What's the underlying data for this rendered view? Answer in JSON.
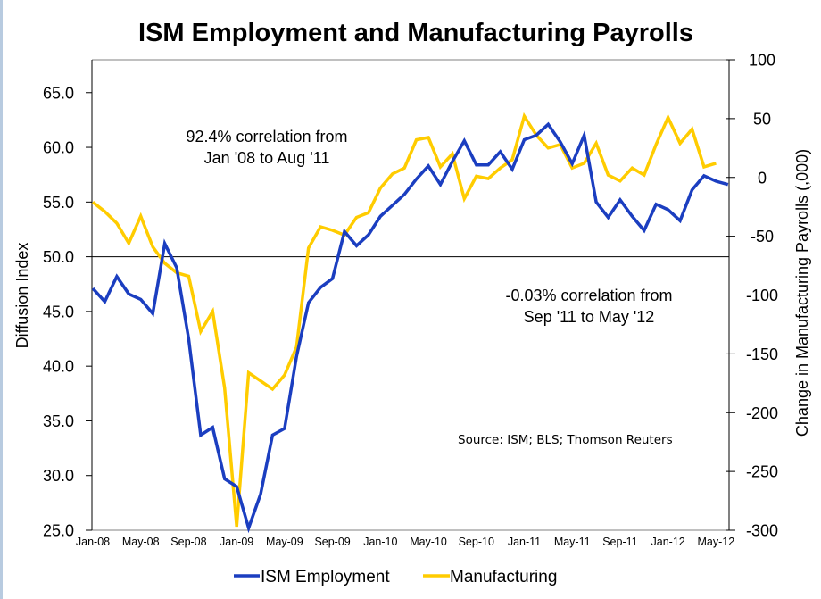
{
  "chart_data": {
    "type": "line",
    "title": "ISM Employment and Manufacturing Payrolls",
    "xlabel": "",
    "ylabel_left": "Diffusion Index",
    "ylabel_right": "Change in Manufacturing Payrolls (,000)",
    "ylim_left": [
      25,
      68
    ],
    "ylim_right": [
      -300,
      100
    ],
    "yticks_left": [
      "25.0",
      "30.0",
      "35.0",
      "40.0",
      "45.0",
      "50.0",
      "55.0",
      "60.0",
      "65.0"
    ],
    "yticks_right": [
      "-300",
      "-250",
      "-200",
      "-150",
      "-100",
      "-50",
      "0",
      "50",
      "100"
    ],
    "xticks": [
      "Jan-08",
      "May-08",
      "Sep-08",
      "Jan-09",
      "May-09",
      "Sep-09",
      "Jan-10",
      "May-10",
      "Sep-10",
      "Jan-11",
      "May-11",
      "Sep-11",
      "Jan-12",
      "May-12"
    ],
    "x_start": "Jan-08",
    "x_frequency": "monthly",
    "reference_line": {
      "axis": "left",
      "value": 50.0
    },
    "grid": false,
    "legend_position": "bottom",
    "series": [
      {
        "name": "ISM Employment",
        "axis": "left",
        "color": "#1b3ec0",
        "values": [
          47.1,
          45.9,
          48.2,
          46.6,
          46.1,
          44.8,
          51.2,
          49.0,
          42.5,
          33.7,
          34.4,
          29.7,
          29.0,
          25.2,
          28.3,
          33.7,
          34.3,
          40.9,
          45.8,
          47.2,
          48.0,
          52.3,
          51.0,
          52.0,
          53.7,
          54.7,
          55.7,
          57.1,
          58.3,
          56.6,
          58.7,
          60.6,
          58.4,
          58.4,
          59.6,
          58.0,
          60.7,
          61.1,
          62.1,
          60.5,
          58.5,
          61.1,
          55.0,
          53.6,
          55.2,
          53.7,
          52.4,
          54.8,
          54.3,
          53.3,
          56.1,
          57.4,
          56.9,
          56.6
        ]
      },
      {
        "name": "Manufacturing",
        "axis": "right",
        "color": "#ffcc00",
        "values": [
          -21,
          -29,
          -39,
          -56,
          -33,
          -59,
          -73,
          -81,
          -84,
          -131,
          -114,
          -179,
          -297,
          -166,
          -173,
          -180,
          -168,
          -144,
          -60,
          -42,
          -45,
          -49,
          -34,
          -30,
          -9,
          3,
          8,
          32,
          34,
          9,
          20,
          -18,
          1,
          -1,
          8,
          15,
          52,
          36,
          25,
          28,
          8,
          12,
          29,
          2,
          -3,
          8,
          2,
          28,
          51,
          29,
          41,
          9,
          12
        ]
      }
    ],
    "annotations": [
      {
        "line1": "92.4% correlation from",
        "line2": "Jan '08 to Aug '11"
      },
      {
        "line1": "-0.03% correlation from",
        "line2": "Sep '11 to May '12"
      }
    ],
    "source": "Source: ISM; BLS; Thomson Reuters"
  }
}
